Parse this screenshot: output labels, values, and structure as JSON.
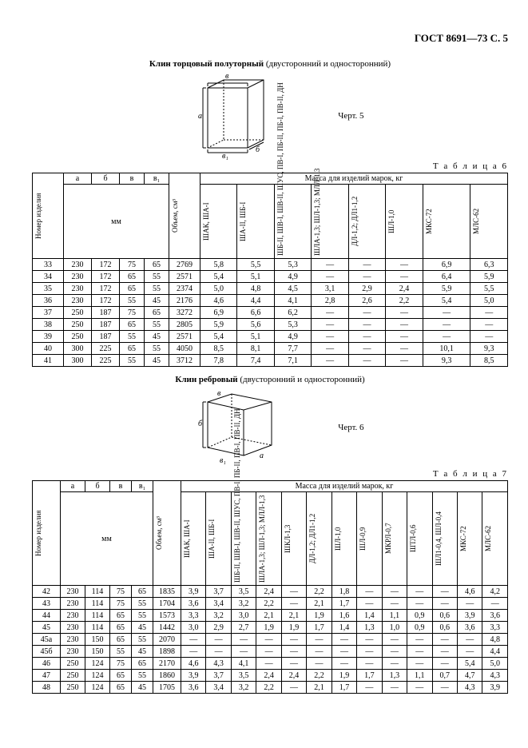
{
  "header": "ГОСТ 8691—73 С. 5",
  "fig5": {
    "title_bold": "Клин торцовый полуторный",
    "title_rest": " (двусторонний и односторонний)",
    "caption": "Черт. 5",
    "dim_a": "а",
    "dim_b": "б",
    "dim_v": "в",
    "dim_v1": "в₁"
  },
  "fig6": {
    "title_bold": "Клин ребровый",
    "title_rest": " (двусторонний и односторонний)",
    "caption": "Черт. 6",
    "dim_a": "а",
    "dim_b": "б",
    "dim_v": "в",
    "dim_v1": "в₁"
  },
  "t6": {
    "label": "Т а б л и ц а   6",
    "h_num": "Номер изделия",
    "h_a": "а",
    "h_b": "б",
    "h_v": "в",
    "h_v1": "в₁",
    "h_mm": "мм",
    "h_vol": "Объем, см³",
    "h_mass": "Масса для изделий марок, кг",
    "cols": [
      "ШАК, ША-I",
      "ША-II, ШБ-I",
      "ШБ-II, ШВ-I,\nШВ-II, ШУС,\nПВ-I, ПБ-II,\nПБ-I, ПВ-II, ДН",
      "ШЛА-1,3; ШЛ-1,3;\nМЛЛ-1,3",
      "ДЛ-1,2; ДЛ1-1,2",
      "ШЛ-1,0",
      "МКС-72",
      "МЛС-62"
    ],
    "rows": [
      [
        "33",
        "230",
        "172",
        "75",
        "65",
        "2769",
        "5,8",
        "5,5",
        "5,3",
        "—",
        "—",
        "—",
        "6,9",
        "6,3"
      ],
      [
        "34",
        "230",
        "172",
        "65",
        "55",
        "2571",
        "5,4",
        "5,1",
        "4,9",
        "—",
        "—",
        "—",
        "6,4",
        "5,9"
      ],
      [
        "35",
        "230",
        "172",
        "65",
        "55",
        "2374",
        "5,0",
        "4,8",
        "4,5",
        "3,1",
        "2,9",
        "2,4",
        "5,9",
        "5,5"
      ],
      [
        "36",
        "230",
        "172",
        "55",
        "45",
        "2176",
        "4,6",
        "4,4",
        "4,1",
        "2,8",
        "2,6",
        "2,2",
        "5,4",
        "5,0"
      ],
      [
        "37",
        "250",
        "187",
        "75",
        "65",
        "3272",
        "6,9",
        "6,6",
        "6,2",
        "—",
        "—",
        "—",
        "—",
        "—"
      ],
      [
        "38",
        "250",
        "187",
        "65",
        "55",
        "2805",
        "5,9",
        "5,6",
        "5,3",
        "—",
        "—",
        "—",
        "—",
        "—"
      ],
      [
        "39",
        "250",
        "187",
        "55",
        "45",
        "2571",
        "5,4",
        "5,1",
        "4,9",
        "—",
        "—",
        "—",
        "—",
        "—"
      ],
      [
        "40",
        "300",
        "225",
        "65",
        "55",
        "4050",
        "8,5",
        "8,1",
        "7,7",
        "—",
        "—",
        "—",
        "10,1",
        "9,3"
      ],
      [
        "41",
        "300",
        "225",
        "55",
        "45",
        "3712",
        "7,8",
        "7,4",
        "7,1",
        "—",
        "—",
        "—",
        "9,3",
        "8,5"
      ]
    ]
  },
  "t7": {
    "label": "Т а б л и ц а   7",
    "h_num": "Номер изделия",
    "h_a": "а",
    "h_b": "б",
    "h_v": "в",
    "h_v1": "в₁",
    "h_mm": "мм",
    "h_vol": "Объем, см³",
    "h_mass": "Масса для изделий марок, кг",
    "cols": [
      "ШАК, ША-I",
      "ША-II, ШБ-I",
      "ШБ-II, ШВ-I,\nШВ-II, ШУС,\nПВ-I, ПБ-II,\nПВ-I, ПВ-II, ДН",
      "ШЛА-1,3; ШЛ-1,3;\nМЛЛ-1,3",
      "ШКЛ-1,3",
      "ДЛ-1,2; ДЛ1-1,2",
      "ШЛ-1,0",
      "ШЛ-0,9",
      "МКРЛ-0,7",
      "ШТЛ-0,6",
      "ШЛ1-0,4, ШЛ-0,4",
      "МКС-72",
      "МЛС-62"
    ],
    "rows": [
      [
        "42",
        "230",
        "114",
        "75",
        "65",
        "1835",
        "3,9",
        "3,7",
        "3,5",
        "2,4",
        "—",
        "2,2",
        "1,8",
        "—",
        "—",
        "—",
        "—",
        "4,6",
        "4,2"
      ],
      [
        "43",
        "230",
        "114",
        "75",
        "55",
        "1704",
        "3,6",
        "3,4",
        "3,2",
        "2,2",
        "—",
        "2,1",
        "1,7",
        "—",
        "—",
        "—",
        "—",
        "—",
        "—"
      ],
      [
        "44",
        "230",
        "114",
        "65",
        "55",
        "1573",
        "3,3",
        "3,2",
        "3,0",
        "2,1",
        "2,1",
        "1,9",
        "1,6",
        "1,4",
        "1,1",
        "0,9",
        "0,6",
        "3,9",
        "3,6"
      ],
      [
        "45",
        "230",
        "114",
        "65",
        "45",
        "1442",
        "3,0",
        "2,9",
        "2,7",
        "1,9",
        "1,9",
        "1,7",
        "1,4",
        "1,3",
        "1,0",
        "0,9",
        "0,6",
        "3,6",
        "3,3"
      ],
      [
        "45а",
        "230",
        "150",
        "65",
        "55",
        "2070",
        "—",
        "—",
        "—",
        "—",
        "—",
        "—",
        "—",
        "—",
        "—",
        "—",
        "—",
        "—",
        "4,8"
      ],
      [
        "45б",
        "230",
        "150",
        "55",
        "45",
        "1898",
        "—",
        "—",
        "—",
        "—",
        "—",
        "—",
        "—",
        "—",
        "—",
        "—",
        "—",
        "—",
        "4,4"
      ],
      [
        "46",
        "250",
        "124",
        "75",
        "65",
        "2170",
        "4,6",
        "4,3",
        "4,1",
        "—",
        "—",
        "—",
        "—",
        "—",
        "—",
        "—",
        "—",
        "5,4",
        "5,0"
      ],
      [
        "47",
        "250",
        "124",
        "65",
        "55",
        "1860",
        "3,9",
        "3,7",
        "3,5",
        "2,4",
        "2,4",
        "2,2",
        "1,9",
        "1,7",
        "1,3",
        "1,1",
        "0,7",
        "4,7",
        "4,3"
      ],
      [
        "48",
        "250",
        "124",
        "65",
        "45",
        "1705",
        "3,6",
        "3,4",
        "3,2",
        "2,2",
        "—",
        "2,1",
        "1,7",
        "—",
        "—",
        "—",
        "—",
        "4,3",
        "3,9"
      ]
    ]
  }
}
